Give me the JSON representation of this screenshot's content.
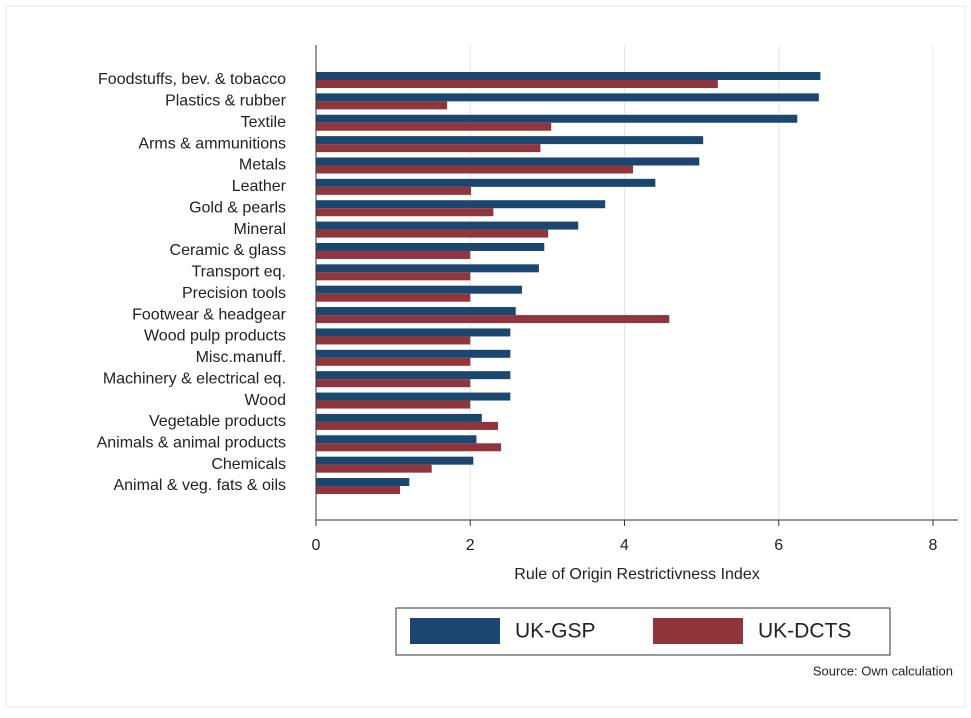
{
  "chart_data": {
    "type": "hbar",
    "xlabel": "Rule of Origin Restrictivness Index",
    "note": "Source: Own calculation",
    "categories": [
      "Foodstuffs, bev. & tobacco",
      "Plastics & rubber",
      "Textile",
      "Arms & ammunitions",
      "Metals",
      "Leather",
      "Gold & pearls",
      "Mineral",
      "Ceramic & glass",
      "Transport eq.",
      "Precision tools",
      "Footwear & headgear",
      "Wood pulp products",
      "Misc.manuff.",
      "Machinery & electrical eq.",
      "Wood",
      "Vegetable products",
      "Animals & animal products",
      "Chemicals",
      "Animal & veg. fats & oils"
    ],
    "series": [
      {
        "name": "UK-GSP",
        "color": "#1a476f",
        "values": [
          6.54,
          6.52,
          6.24,
          5.02,
          4.97,
          4.4,
          3.75,
          3.4,
          2.96,
          2.89,
          2.67,
          2.59,
          2.52,
          2.52,
          2.52,
          2.52,
          2.15,
          2.08,
          2.04,
          1.21
        ]
      },
      {
        "name": "UK-DCTS",
        "color": "#90353b",
        "values": [
          5.21,
          1.7,
          3.05,
          2.91,
          4.11,
          2.01,
          2.3,
          3.01,
          2.0,
          2.0,
          2.0,
          4.58,
          2.0,
          2.0,
          2.0,
          2.0,
          2.36,
          2.4,
          1.5,
          1.09
        ]
      }
    ],
    "xlim": [
      0,
      8
    ],
    "xticks": [
      0,
      2,
      4,
      6,
      8
    ],
    "grid": true,
    "legend": "bottom"
  }
}
